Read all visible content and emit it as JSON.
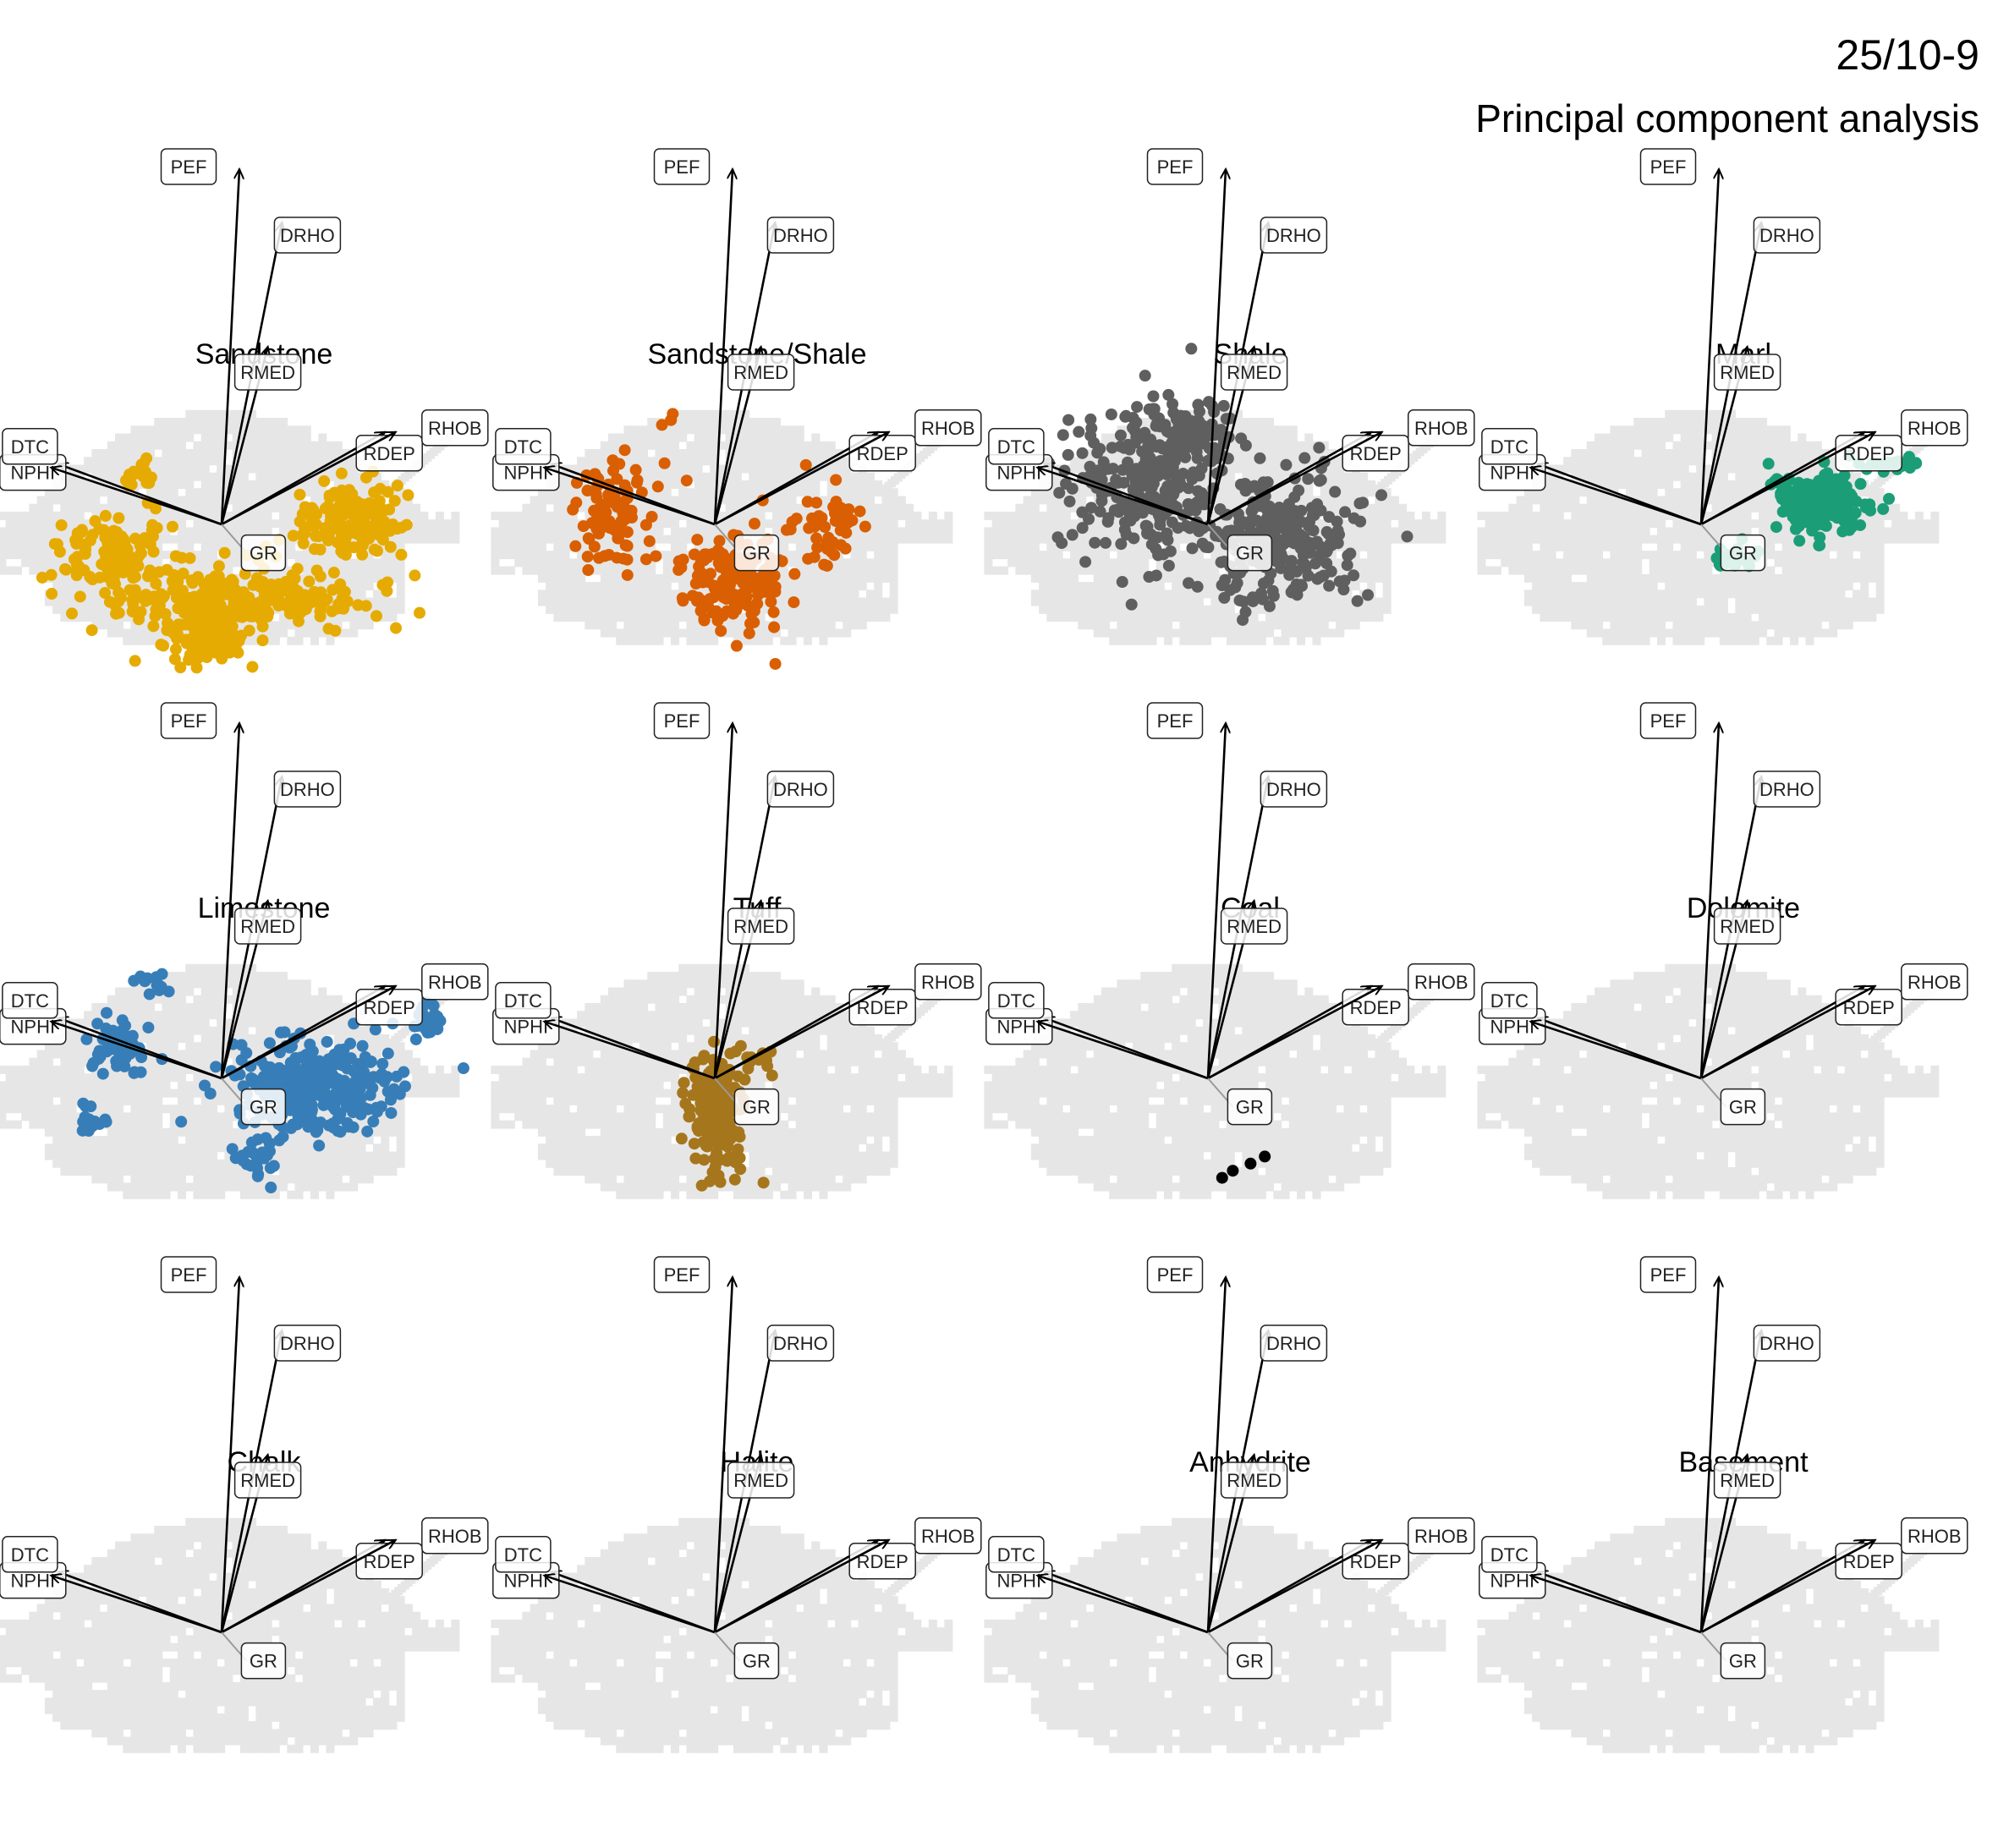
{
  "header": {
    "well": "25/10-9",
    "subtitle": "Principal component analysis"
  },
  "chart_data": {
    "type": "scatter",
    "facet_columns": 4,
    "background_colour": "#e6e6e6",
    "loading_colour": "#000000",
    "loadings": [
      {
        "name": "PEF",
        "x": 0.05,
        "y": 1.0
      },
      {
        "name": "DRHO",
        "x": 0.17,
        "y": 0.85
      },
      {
        "name": "RMED",
        "x": 0.13,
        "y": 0.5
      },
      {
        "name": "NPHI",
        "x": -0.46,
        "y": 0.17
      },
      {
        "name": "DTC",
        "x": -0.48,
        "y": 0.16
      },
      {
        "name": "RDEP",
        "x": 0.46,
        "y": 0.26
      },
      {
        "name": "RHOB",
        "x": 0.49,
        "y": 0.26
      },
      {
        "name": "GR",
        "x": 0.07,
        "y": -0.08
      }
    ],
    "panels": [
      {
        "title": "Sandstone",
        "color": "#e6ab02",
        "clusters": [
          {
            "cx": 0.02,
            "cy": -0.22,
            "rx": 0.35,
            "ry": 0.1,
            "n": 260
          },
          {
            "cx": -0.32,
            "cy": -0.08,
            "rx": 0.15,
            "ry": 0.1,
            "n": 110
          },
          {
            "cx": 0.36,
            "cy": 0.01,
            "rx": 0.14,
            "ry": 0.13,
            "n": 150
          },
          {
            "cx": -0.05,
            "cy": -0.33,
            "rx": 0.12,
            "ry": 0.06,
            "n": 80
          },
          {
            "cx": -0.22,
            "cy": 0.12,
            "rx": 0.06,
            "ry": 0.06,
            "n": 20
          }
        ]
      },
      {
        "title": "Sandstone/Shale",
        "color": "#d95f02",
        "clusters": [
          {
            "cx": -0.29,
            "cy": 0.03,
            "rx": 0.12,
            "ry": 0.15,
            "n": 90
          },
          {
            "cx": 0.05,
            "cy": -0.16,
            "rx": 0.14,
            "ry": 0.14,
            "n": 160
          },
          {
            "cx": 0.32,
            "cy": 0.0,
            "rx": 0.1,
            "ry": 0.1,
            "n": 50
          },
          {
            "cx": -0.12,
            "cy": 0.3,
            "rx": 0.03,
            "ry": 0.03,
            "n": 3
          }
        ]
      },
      {
        "title": "Shale",
        "color": "#5f5f5f",
        "clusters": [
          {
            "cx": -0.18,
            "cy": 0.12,
            "rx": 0.2,
            "ry": 0.22,
            "n": 260
          },
          {
            "cx": 0.2,
            "cy": -0.04,
            "rx": 0.23,
            "ry": 0.18,
            "n": 260
          },
          {
            "cx": -0.05,
            "cy": 0.25,
            "rx": 0.12,
            "ry": 0.08,
            "n": 80
          }
        ]
      },
      {
        "title": "Marl",
        "color": "#1b9e77",
        "clusters": [
          {
            "cx": 0.34,
            "cy": 0.06,
            "rx": 0.15,
            "ry": 0.09,
            "n": 170
          },
          {
            "cx": 0.1,
            "cy": -0.09,
            "rx": 0.07,
            "ry": 0.04,
            "n": 20
          },
          {
            "cx": 0.54,
            "cy": 0.17,
            "rx": 0.07,
            "ry": 0.03,
            "n": 20
          }
        ]
      },
      {
        "title": "Limestone",
        "color": "#377eb8",
        "clusters": [
          {
            "cx": 0.26,
            "cy": -0.02,
            "rx": 0.22,
            "ry": 0.12,
            "n": 320
          },
          {
            "cx": -0.3,
            "cy": 0.08,
            "rx": 0.08,
            "ry": 0.09,
            "n": 60
          },
          {
            "cx": -0.36,
            "cy": -0.13,
            "rx": 0.04,
            "ry": 0.05,
            "n": 15
          },
          {
            "cx": -0.18,
            "cy": 0.26,
            "rx": 0.06,
            "ry": 0.04,
            "n": 15
          },
          {
            "cx": 0.58,
            "cy": 0.16,
            "rx": 0.04,
            "ry": 0.06,
            "n": 25
          },
          {
            "cx": 0.1,
            "cy": -0.23,
            "rx": 0.07,
            "ry": 0.05,
            "n": 25
          }
        ]
      },
      {
        "title": "Tuff",
        "color": "#a6761d",
        "clusters": [
          {
            "cx": 0.01,
            "cy": -0.1,
            "rx": 0.08,
            "ry": 0.17,
            "n": 180
          },
          {
            "cx": 0.13,
            "cy": 0.05,
            "rx": 0.05,
            "ry": 0.03,
            "n": 10
          }
        ]
      },
      {
        "title": "Coal",
        "color": "#000000",
        "points": [
          [
            0.04,
            -0.28
          ],
          [
            0.07,
            -0.26
          ],
          [
            0.12,
            -0.24
          ],
          [
            0.16,
            -0.22
          ]
        ]
      },
      {
        "title": "Dolomite",
        "color": "#000000",
        "clusters": []
      },
      {
        "title": "Chalk",
        "color": "#000000",
        "clusters": []
      },
      {
        "title": "Halite",
        "color": "#000000",
        "clusters": []
      },
      {
        "title": "Anhydrite",
        "color": "#000000",
        "clusters": []
      },
      {
        "title": "Basement",
        "color": "#000000",
        "clusters": []
      }
    ]
  }
}
